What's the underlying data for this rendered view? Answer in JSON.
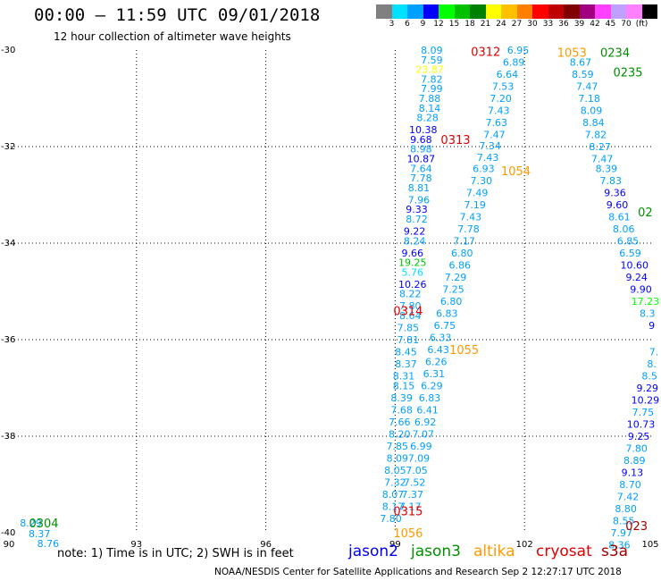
{
  "title": "00:00 – 11:59 UTC 09/01/2018",
  "subtitle": "12 hour collection of altimeter wave heights",
  "color_scale": {
    "colors": [
      "#808080",
      "#00e0ff",
      "#00a0ff",
      "#0000ff",
      "#00ff00",
      "#00c000",
      "#008000",
      "#ffff00",
      "#ffc000",
      "#ff8000",
      "#ff0000",
      "#c00000",
      "#800000",
      "#a00080",
      "#ff40ff",
      "#c0a0ff",
      "#ff80ff",
      "#000000"
    ],
    "labels": [
      "3",
      "6",
      "9",
      "12",
      "15",
      "18",
      "21",
      "24",
      "27",
      "30",
      "33",
      "36",
      "39",
      "42",
      "45",
      "70",
      "(ft)"
    ]
  },
  "axes": {
    "lon_ticks": [
      "90",
      "93",
      "96",
      "99",
      "102",
      "105"
    ],
    "lat_ticks": [
      "-30",
      "-32",
      "-34",
      "-36",
      "-38",
      "-40"
    ],
    "lon_range": [
      90,
      105
    ],
    "lat_range": [
      -40,
      -30
    ]
  },
  "note": "note: 1) Time is in UTC; 2) SWH is in feet",
  "legend": [
    {
      "name": "jason2",
      "color": "#0000ee"
    },
    {
      "name": "jason3",
      "color": "#009000"
    },
    {
      "name": "altika",
      "color": "#ff9900"
    },
    {
      "name": "cryosat",
      "color": "#e00000"
    },
    {
      "name": "s3a",
      "color": "#a00000"
    }
  ],
  "footer": "NOAA/NESDIS Center for Satellite Applications and Research   Sep  2 12:27:17 UTC 2018",
  "chart_data": {
    "type": "map",
    "title": "00:00 – 11:59 UTC 09/01/2018",
    "xlim": [
      90,
      105
    ],
    "ylim": [
      -40,
      -30
    ],
    "grid": true,
    "time_labels": [
      {
        "text": "0312",
        "lon": 101.1,
        "lat": -30.03,
        "color": "#e00000"
      },
      {
        "text": "1053",
        "lon": 103.1,
        "lat": -30.05,
        "color": "#ff9900"
      },
      {
        "text": "0234",
        "lon": 104.1,
        "lat": -30.05,
        "color": "#009000"
      },
      {
        "text": "0235",
        "lon": 104.4,
        "lat": -30.45,
        "color": "#009000"
      },
      {
        "text": "0313",
        "lon": 100.4,
        "lat": -31.85,
        "color": "#e00000"
      },
      {
        "text": "1054",
        "lon": 101.8,
        "lat": -32.5,
        "color": "#ff9900"
      },
      {
        "text": "02",
        "lon": 104.8,
        "lat": -33.35,
        "color": "#009000"
      },
      {
        "text": "0314",
        "lon": 99.3,
        "lat": -35.4,
        "color": "#e00000"
      },
      {
        "text": "1055",
        "lon": 100.6,
        "lat": -36.2,
        "color": "#ff9900"
      },
      {
        "text": "0315",
        "lon": 99.3,
        "lat": -39.55,
        "color": "#e00000"
      },
      {
        "text": "1056",
        "lon": 99.3,
        "lat": -40.0,
        "color": "#ff9900"
      },
      {
        "text": "023",
        "lon": 104.6,
        "lat": -39.85,
        "color": "#a00000"
      },
      {
        "text": "0304",
        "lon": 90.85,
        "lat": -39.8,
        "color": "#009000"
      }
    ],
    "series": [
      {
        "name": "track-A",
        "points": [
          {
            "lon": 99.85,
            "lat": -30.0,
            "v": "8.09",
            "c": "#00a0ff"
          },
          {
            "lon": 99.85,
            "lat": -30.2,
            "v": "7.59",
            "c": "#00a0ff"
          },
          {
            "lon": 99.8,
            "lat": -30.4,
            "v": "23.87",
            "c": "#ffff00"
          },
          {
            "lon": 99.85,
            "lat": -30.6,
            "v": "7.82",
            "c": "#00a0ff"
          },
          {
            "lon": 99.85,
            "lat": -30.8,
            "v": "7.99",
            "c": "#00a0ff"
          },
          {
            "lon": 99.8,
            "lat": -31.0,
            "v": "7.88",
            "c": "#00a0ff"
          },
          {
            "lon": 99.8,
            "lat": -31.2,
            "v": "8.14",
            "c": "#00a0ff"
          },
          {
            "lon": 99.75,
            "lat": -31.4,
            "v": "8.28",
            "c": "#00a0ff"
          },
          {
            "lon": 99.65,
            "lat": -31.65,
            "v": "10.38",
            "c": "#0000ff"
          },
          {
            "lon": 99.6,
            "lat": -31.85,
            "v": "9.68",
            "c": "#0000ff"
          },
          {
            "lon": 99.6,
            "lat": -32.05,
            "v": "8.98",
            "c": "#00a0ff"
          },
          {
            "lon": 99.6,
            "lat": -32.25,
            "v": "10.87",
            "c": "#0000ff"
          },
          {
            "lon": 99.6,
            "lat": -32.45,
            "v": "7.64",
            "c": "#00a0ff"
          },
          {
            "lon": 99.6,
            "lat": -32.65,
            "v": "7.78",
            "c": "#00a0ff"
          },
          {
            "lon": 99.55,
            "lat": -32.85,
            "v": "8.81",
            "c": "#00a0ff"
          },
          {
            "lon": 99.55,
            "lat": -33.1,
            "v": "7.96",
            "c": "#00a0ff"
          },
          {
            "lon": 99.5,
            "lat": -33.3,
            "v": "9.33",
            "c": "#0000ff"
          },
          {
            "lon": 99.5,
            "lat": -33.5,
            "v": "8.72",
            "c": "#00a0ff"
          },
          {
            "lon": 99.45,
            "lat": -33.75,
            "v": "9.22",
            "c": "#0000ff"
          },
          {
            "lon": 99.45,
            "lat": -33.95,
            "v": "8.24",
            "c": "#00a0ff"
          },
          {
            "lon": 99.4,
            "lat": -34.2,
            "v": "9.66",
            "c": "#0000ff"
          },
          {
            "lon": 99.4,
            "lat": -34.4,
            "v": "19.25",
            "c": "#00c000"
          },
          {
            "lon": 99.4,
            "lat": -34.6,
            "v": "5.76",
            "c": "#00e0ff"
          },
          {
            "lon": 99.4,
            "lat": -34.85,
            "v": "10.26",
            "c": "#0000ff"
          },
          {
            "lon": 99.35,
            "lat": -35.05,
            "v": "8.22",
            "c": "#00a0ff"
          },
          {
            "lon": 99.35,
            "lat": -35.3,
            "v": "7.80",
            "c": "#00a0ff"
          },
          {
            "lon": 99.35,
            "lat": -35.5,
            "v": "8.64",
            "c": "#00a0ff"
          },
          {
            "lon": 99.3,
            "lat": -35.75,
            "v": "7.85",
            "c": "#00a0ff"
          },
          {
            "lon": 99.3,
            "lat": -36.0,
            "v": "7.81",
            "c": "#00a0ff"
          },
          {
            "lon": 99.25,
            "lat": -36.25,
            "v": "8.45",
            "c": "#00a0ff"
          },
          {
            "lon": 99.25,
            "lat": -36.5,
            "v": "8.37",
            "c": "#00a0ff"
          },
          {
            "lon": 99.2,
            "lat": -36.75,
            "v": "8.31",
            "c": "#00a0ff"
          },
          {
            "lon": 99.2,
            "lat": -36.95,
            "v": "8.15",
            "c": "#00a0ff"
          },
          {
            "lon": 99.15,
            "lat": -37.2,
            "v": "8.39",
            "c": "#00a0ff"
          },
          {
            "lon": 99.15,
            "lat": -37.45,
            "v": "7.68",
            "c": "#00a0ff"
          },
          {
            "lon": 99.1,
            "lat": -37.7,
            "v": "7.66",
            "c": "#00a0ff"
          },
          {
            "lon": 99.1,
            "lat": -37.95,
            "v": "8.20",
            "c": "#00a0ff"
          },
          {
            "lon": 99.05,
            "lat": -38.2,
            "v": "7.85",
            "c": "#00a0ff"
          },
          {
            "lon": 99.05,
            "lat": -38.45,
            "v": "8.09",
            "c": "#00a0ff"
          },
          {
            "lon": 99.0,
            "lat": -38.7,
            "v": "8.05",
            "c": "#00a0ff"
          },
          {
            "lon": 99.0,
            "lat": -38.95,
            "v": "7.32",
            "c": "#00a0ff"
          },
          {
            "lon": 98.95,
            "lat": -39.2,
            "v": "8.07",
            "c": "#00a0ff"
          },
          {
            "lon": 98.95,
            "lat": -39.45,
            "v": "8.17",
            "c": "#00a0ff"
          },
          {
            "lon": 98.9,
            "lat": -39.7,
            "v": "7.80",
            "c": "#00a0ff"
          }
        ]
      },
      {
        "name": "track-B",
        "points": [
          {
            "lon": 101.85,
            "lat": -30.0,
            "v": "6.95",
            "c": "#00a0ff"
          },
          {
            "lon": 101.75,
            "lat": -30.25,
            "v": "6.89",
            "c": "#00a0ff"
          },
          {
            "lon": 101.6,
            "lat": -30.5,
            "v": "6.64",
            "c": "#00a0ff"
          },
          {
            "lon": 101.5,
            "lat": -30.75,
            "v": "7.53",
            "c": "#00a0ff"
          },
          {
            "lon": 101.45,
            "lat": -31.0,
            "v": "7.20",
            "c": "#00a0ff"
          },
          {
            "lon": 101.4,
            "lat": -31.25,
            "v": "7.43",
            "c": "#00a0ff"
          },
          {
            "lon": 101.35,
            "lat": -31.5,
            "v": "7.63",
            "c": "#00a0ff"
          },
          {
            "lon": 101.3,
            "lat": -31.75,
            "v": "7.47",
            "c": "#00a0ff"
          },
          {
            "lon": 101.2,
            "lat": -31.98,
            "v": "7.34",
            "c": "#00a0ff"
          },
          {
            "lon": 101.15,
            "lat": -32.22,
            "v": "7.43",
            "c": "#00a0ff"
          },
          {
            "lon": 101.05,
            "lat": -32.45,
            "v": "6.93",
            "c": "#00a0ff"
          },
          {
            "lon": 101.0,
            "lat": -32.7,
            "v": "7.30",
            "c": "#00a0ff"
          },
          {
            "lon": 100.9,
            "lat": -32.95,
            "v": "7.49",
            "c": "#00a0ff"
          },
          {
            "lon": 100.85,
            "lat": -33.2,
            "v": "7.19",
            "c": "#00a0ff"
          },
          {
            "lon": 100.75,
            "lat": -33.45,
            "v": "7.43",
            "c": "#00a0ff"
          },
          {
            "lon": 100.7,
            "lat": -33.7,
            "v": "7.78",
            "c": "#00a0ff"
          },
          {
            "lon": 100.6,
            "lat": -33.95,
            "v": "7.17",
            "c": "#00a0ff"
          },
          {
            "lon": 100.55,
            "lat": -34.2,
            "v": "6.80",
            "c": "#00a0ff"
          },
          {
            "lon": 100.5,
            "lat": -34.45,
            "v": "6.86",
            "c": "#00a0ff"
          },
          {
            "lon": 100.4,
            "lat": -34.7,
            "v": "7.29",
            "c": "#00a0ff"
          },
          {
            "lon": 100.35,
            "lat": -34.95,
            "v": "7.25",
            "c": "#00a0ff"
          },
          {
            "lon": 100.3,
            "lat": -35.2,
            "v": "6.80",
            "c": "#00a0ff"
          },
          {
            "lon": 100.2,
            "lat": -35.45,
            "v": "6.83",
            "c": "#00a0ff"
          },
          {
            "lon": 100.15,
            "lat": -35.7,
            "v": "6.75",
            "c": "#00a0ff"
          },
          {
            "lon": 100.05,
            "lat": -35.95,
            "v": "6.33",
            "c": "#00a0ff"
          },
          {
            "lon": 100.0,
            "lat": -36.2,
            "v": "6.43",
            "c": "#00a0ff"
          },
          {
            "lon": 99.95,
            "lat": -36.45,
            "v": "6.26",
            "c": "#00a0ff"
          },
          {
            "lon": 99.9,
            "lat": -36.7,
            "v": "6.31",
            "c": "#00a0ff"
          },
          {
            "lon": 99.85,
            "lat": -36.95,
            "v": "6.29",
            "c": "#00a0ff"
          },
          {
            "lon": 99.8,
            "lat": -37.2,
            "v": "6.83",
            "c": "#00a0ff"
          },
          {
            "lon": 99.75,
            "lat": -37.45,
            "v": "6.41",
            "c": "#00a0ff"
          },
          {
            "lon": 99.7,
            "lat": -37.7,
            "v": "6.92",
            "c": "#00a0ff"
          },
          {
            "lon": 99.65,
            "lat": -37.95,
            "v": "7.07",
            "c": "#00a0ff"
          },
          {
            "lon": 99.6,
            "lat": -38.2,
            "v": "6.99",
            "c": "#00a0ff"
          },
          {
            "lon": 99.55,
            "lat": -38.45,
            "v": "7.09",
            "c": "#00a0ff"
          },
          {
            "lon": 99.5,
            "lat": -38.7,
            "v": "7.05",
            "c": "#00a0ff"
          },
          {
            "lon": 99.45,
            "lat": -38.95,
            "v": "7.52",
            "c": "#00a0ff"
          },
          {
            "lon": 99.4,
            "lat": -39.2,
            "v": "7.37",
            "c": "#00a0ff"
          },
          {
            "lon": 99.35,
            "lat": -39.45,
            "v": "7.17",
            "c": "#00a0ff"
          }
        ]
      },
      {
        "name": "track-C",
        "points": [
          {
            "lon": 103.3,
            "lat": -30.25,
            "v": "8.67",
            "c": "#00a0ff"
          },
          {
            "lon": 103.35,
            "lat": -30.5,
            "v": "8.59",
            "c": "#00a0ff"
          },
          {
            "lon": 103.45,
            "lat": -30.75,
            "v": "7.47",
            "c": "#00a0ff"
          },
          {
            "lon": 103.5,
            "lat": -31.0,
            "v": "7.18",
            "c": "#00a0ff"
          },
          {
            "lon": 103.55,
            "lat": -31.25,
            "v": "8.09",
            "c": "#00a0ff"
          },
          {
            "lon": 103.6,
            "lat": -31.5,
            "v": "8.84",
            "c": "#00a0ff"
          },
          {
            "lon": 103.65,
            "lat": -31.75,
            "v": "7.82",
            "c": "#00a0ff"
          },
          {
            "lon": 103.75,
            "lat": -32.0,
            "v": "8.27",
            "c": "#00a0ff"
          },
          {
            "lon": 103.8,
            "lat": -32.25,
            "v": "7.47",
            "c": "#00a0ff"
          },
          {
            "lon": 103.9,
            "lat": -32.45,
            "v": "8.39",
            "c": "#00a0ff"
          },
          {
            "lon": 104.0,
            "lat": -32.7,
            "v": "7.83",
            "c": "#00a0ff"
          },
          {
            "lon": 104.1,
            "lat": -32.95,
            "v": "9.36",
            "c": "#0000ff"
          },
          {
            "lon": 104.15,
            "lat": -33.2,
            "v": "9.60",
            "c": "#0000ff"
          },
          {
            "lon": 104.2,
            "lat": -33.45,
            "v": "8.61",
            "c": "#00a0ff"
          },
          {
            "lon": 104.3,
            "lat": -33.7,
            "v": "8.06",
            "c": "#00a0ff"
          },
          {
            "lon": 104.4,
            "lat": -33.95,
            "v": "6.85",
            "c": "#00a0ff"
          },
          {
            "lon": 104.45,
            "lat": -34.2,
            "v": "6.59",
            "c": "#00a0ff"
          },
          {
            "lon": 104.55,
            "lat": -34.45,
            "v": "10.60",
            "c": "#0000ff"
          },
          {
            "lon": 104.6,
            "lat": -34.7,
            "v": "9.24",
            "c": "#0000ff"
          },
          {
            "lon": 104.7,
            "lat": -34.95,
            "v": "9.90",
            "c": "#0000ff"
          },
          {
            "lon": 104.8,
            "lat": -35.2,
            "v": "17.23",
            "c": "#00ff00"
          },
          {
            "lon": 104.85,
            "lat": -35.45,
            "v": "8.3",
            "c": "#00a0ff"
          },
          {
            "lon": 104.95,
            "lat": -35.7,
            "v": "9",
            "c": "#0000ff"
          }
        ]
      },
      {
        "name": "track-D",
        "points": [
          {
            "lon": 105.0,
            "lat": -36.25,
            "v": "7.",
            "c": "#00a0ff"
          },
          {
            "lon": 104.95,
            "lat": -36.5,
            "v": "8.",
            "c": "#00a0ff"
          },
          {
            "lon": 104.9,
            "lat": -36.75,
            "v": "8.5",
            "c": "#00a0ff"
          },
          {
            "lon": 104.85,
            "lat": -37.0,
            "v": "9.29",
            "c": "#0000ff"
          },
          {
            "lon": 104.8,
            "lat": -37.25,
            "v": "10.29",
            "c": "#0000ff"
          },
          {
            "lon": 104.75,
            "lat": -37.5,
            "v": "7.75",
            "c": "#00a0ff"
          },
          {
            "lon": 104.7,
            "lat": -37.75,
            "v": "10.73",
            "c": "#0000ff"
          },
          {
            "lon": 104.65,
            "lat": -38.0,
            "v": "9.25",
            "c": "#0000ff"
          },
          {
            "lon": 104.6,
            "lat": -38.25,
            "v": "7.80",
            "c": "#00a0ff"
          },
          {
            "lon": 104.55,
            "lat": -38.5,
            "v": "8.89",
            "c": "#00a0ff"
          },
          {
            "lon": 104.5,
            "lat": -38.75,
            "v": "9.13",
            "c": "#0000ff"
          },
          {
            "lon": 104.45,
            "lat": -39.0,
            "v": "8.70",
            "c": "#00a0ff"
          },
          {
            "lon": 104.4,
            "lat": -39.25,
            "v": "7.42",
            "c": "#00a0ff"
          },
          {
            "lon": 104.35,
            "lat": -39.5,
            "v": "8.80",
            "c": "#00a0ff"
          },
          {
            "lon": 104.3,
            "lat": -39.75,
            "v": "8.55",
            "c": "#00a0ff"
          },
          {
            "lon": 104.25,
            "lat": -40.0,
            "v": "7.97",
            "c": "#00a0ff"
          },
          {
            "lon": 104.2,
            "lat": -40.25,
            "v": "8.36",
            "c": "#00a0ff"
          }
        ]
      },
      {
        "name": "track-E",
        "points": [
          {
            "lon": 90.55,
            "lat": -39.8,
            "v": "8.29",
            "c": "#00a0ff"
          },
          {
            "lon": 90.75,
            "lat": -40.02,
            "v": "8.37",
            "c": "#00a0ff"
          },
          {
            "lon": 90.95,
            "lat": -40.22,
            "v": "8.76",
            "c": "#00a0ff"
          }
        ]
      }
    ]
  }
}
